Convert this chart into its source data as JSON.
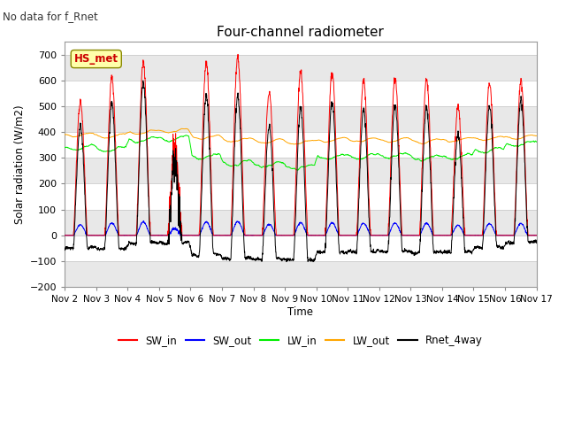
{
  "title": "Four-channel radiometer",
  "subtitle": "No data for f_Rnet",
  "ylabel": "Solar radiation (W/m2)",
  "xlabel": "Time",
  "station_label": "HS_met",
  "ylim": [
    -200,
    750
  ],
  "yticks": [
    -200,
    -100,
    0,
    100,
    200,
    300,
    400,
    500,
    600,
    700
  ],
  "x_labels": [
    "Nov 2",
    "Nov 3",
    "Nov 4",
    "Nov 5",
    "Nov 6",
    "Nov 7",
    "Nov 8",
    "Nov 9",
    "Nov 10",
    "Nov 11",
    "Nov 12",
    "Nov 13",
    "Nov 14",
    "Nov 15",
    "Nov 16",
    "Nov 17"
  ],
  "colors": {
    "SW_in": "#ff0000",
    "SW_out": "#0000ff",
    "LW_in": "#00ee00",
    "LW_out": "#ffa500",
    "Rnet_4way": "#000000"
  },
  "legend_labels": [
    "SW_in",
    "SW_out",
    "LW_in",
    "LW_out",
    "Rnet_4way"
  ],
  "fig_bg_color": "#ffffff",
  "plot_bg_color": "#ffffff",
  "grid_color": "#d0d0d0",
  "station_box_fc": "#ffffaa",
  "station_box_ec": "#888800",
  "station_text_color": "#cc0000"
}
